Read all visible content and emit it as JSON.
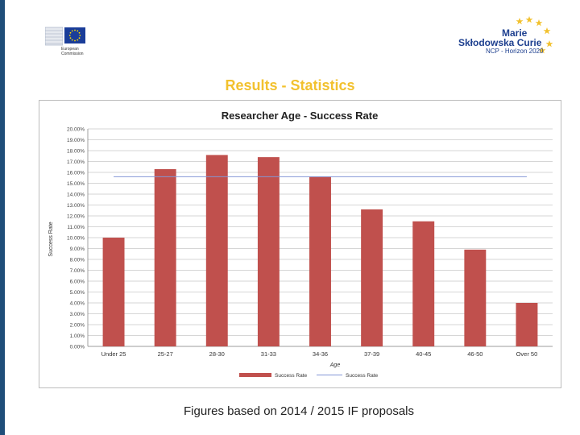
{
  "slide": {
    "title": "Results - Statistics",
    "footer": "Figures based on 2014 / 2015 IF proposals",
    "accent_color": "#1f4e79"
  },
  "logos": {
    "ec_text": "European\nCommission",
    "msc_line1": "Marie",
    "msc_line2": "Skłodowska Curie",
    "msc_line3": "NCP - Horizon 2020"
  },
  "chart_data": {
    "type": "bar",
    "title": "Researcher Age - Success Rate",
    "xlabel": "Age",
    "ylabel": "Success Rate",
    "categories": [
      "Under 25",
      "25-27",
      "28-30",
      "31-33",
      "34-36",
      "37-39",
      "40-45",
      "46-50",
      "Over 50"
    ],
    "series": [
      {
        "name": "Success Rate",
        "type": "bar",
        "color": "#c0504d",
        "values": [
          10.0,
          16.3,
          17.6,
          17.4,
          15.6,
          12.6,
          11.5,
          8.9,
          4.0
        ]
      },
      {
        "name": "Success Rate",
        "type": "line",
        "color": "#8497d6",
        "values": [
          15.6,
          15.6,
          15.6,
          15.6,
          15.6,
          15.6,
          15.6,
          15.6,
          15.6
        ]
      }
    ],
    "ylim": [
      0,
      20
    ],
    "yticks": [
      "0.00%",
      "1.00%",
      "2.00%",
      "3.00%",
      "4.00%",
      "5.00%",
      "6.00%",
      "7.00%",
      "8.00%",
      "9.00%",
      "10.00%",
      "11.00%",
      "12.00%",
      "13.00%",
      "14.00%",
      "15.00%",
      "16.00%",
      "17.00%",
      "18.00%",
      "19.00%",
      "20.00%"
    ],
    "grid": true,
    "legend": "bottom"
  }
}
